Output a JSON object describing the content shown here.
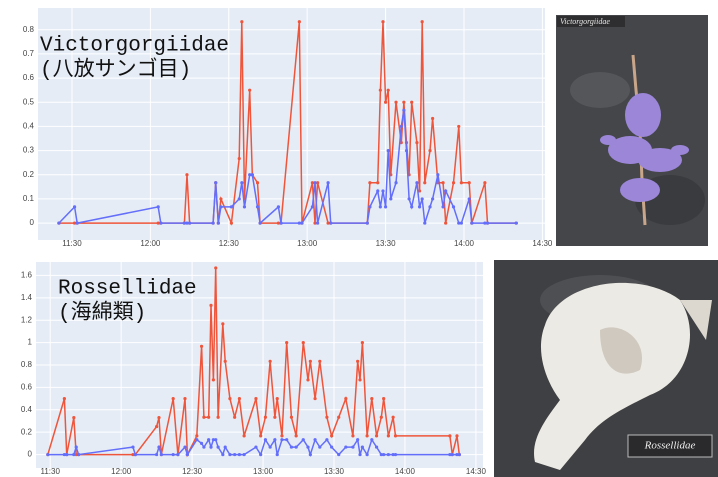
{
  "chart_data": [
    {
      "type": "line",
      "annotation": [
        "Victorgorgiidae",
        "(八放サンゴ目)"
      ],
      "photo_caption": "Victorgorgiidae",
      "x": [
        "11:25",
        "11:31",
        "11:32",
        "12:03",
        "12:04",
        "12:13",
        "12:14",
        "12:15",
        "12:24",
        "12:25",
        "12:26",
        "12:27",
        "12:31",
        "12:34",
        "12:35",
        "12:36",
        "12:38",
        "12:39",
        "12:41",
        "12:42",
        "12:49",
        "12:50",
        "12:57",
        "12:58",
        "13:02",
        "13:03",
        "13:04",
        "13:08",
        "13:09",
        "13:23",
        "13:24",
        "13:27",
        "13:28",
        "13:29",
        "13:30",
        "13:31",
        "13:32",
        "13:34",
        "13:36",
        "13:37",
        "13:38",
        "13:39",
        "13:40",
        "13:42",
        "13:43",
        "13:44",
        "13:45",
        "13:47",
        "13:48",
        "13:50",
        "13:52",
        "13:53",
        "13:56",
        "13:58",
        "13:59",
        "14:02",
        "14:03",
        "14:08",
        "14:09",
        "14:20"
      ],
      "series": [
        {
          "color": "#ef553b",
          "values": [
            0,
            0,
            0,
            0,
            0,
            0,
            0.2,
            0,
            0,
            0.167,
            0,
            0.1,
            0,
            0.267,
            0.833,
            0.1,
            0.55,
            0.2,
            0.167,
            0,
            0,
            0,
            0.833,
            0,
            0.167,
            0,
            0.167,
            0,
            0,
            0,
            0.167,
            0.167,
            0.55,
            0.833,
            0.5,
            0.55,
            0.2,
            0.5,
            0.333,
            0.5,
            0.333,
            0.2,
            0.5,
            0.333,
            0.133,
            0.833,
            0.167,
            0.3,
            0.433,
            0.167,
            0.167,
            0,
            0.167,
            0.4,
            0.167,
            0.167,
            0,
            0.167,
            0,
            0
          ]
        },
        {
          "color": "#636efa",
          "values": [
            0,
            0.067,
            0,
            0.067,
            0,
            0,
            0,
            0,
            0,
            0.167,
            0,
            0.067,
            0.067,
            0.1,
            0.167,
            0.067,
            0.2,
            0.2,
            0.067,
            0,
            0.067,
            0,
            0,
            0,
            0.067,
            0.167,
            0,
            0.167,
            0,
            0,
            0.067,
            0.133,
            0.067,
            0.133,
            0.067,
            0.3,
            0.1,
            0.167,
            0.4,
            0.467,
            0.3,
            0.1,
            0.067,
            0.167,
            0.067,
            0.1,
            0,
            0.067,
            0.1,
            0.2,
            0.067,
            0.133,
            0.067,
            0,
            0,
            0.1,
            0,
            0,
            0,
            0
          ]
        }
      ],
      "xlim": [
        "11:17",
        "14:31"
      ],
      "xticks": [
        "11:30",
        "12:00",
        "12:30",
        "13:00",
        "13:30",
        "14:00",
        "14:30"
      ],
      "ylim": [
        -0.07,
        0.89
      ],
      "yticks": [
        0,
        0.1,
        0.2,
        0.3,
        0.4,
        0.5,
        0.6,
        0.7,
        0.8
      ],
      "grid": true
    },
    {
      "type": "line",
      "annotation": [
        "Rossellidae",
        "(海綿類)"
      ],
      "photo_caption": "Rossellidae",
      "x": [
        "11:29",
        "11:36",
        "11:37",
        "11:40",
        "11:41",
        "11:42",
        "12:05",
        "12:06",
        "12:15",
        "12:16",
        "12:17",
        "12:22",
        "12:24",
        "12:27",
        "12:28",
        "12:32",
        "12:34",
        "12:35",
        "12:37",
        "12:38",
        "12:39",
        "12:40",
        "12:41",
        "12:43",
        "12:44",
        "12:46",
        "12:48",
        "12:50",
        "12:52",
        "12:57",
        "12:59",
        "13:01",
        "13:03",
        "13:05",
        "13:06",
        "13:08",
        "13:10",
        "13:12",
        "13:14",
        "13:17",
        "13:19",
        "13:20",
        "13:22",
        "13:24",
        "13:27",
        "13:29",
        "13:32",
        "13:35",
        "13:38",
        "13:40",
        "13:41",
        "13:42",
        "13:44",
        "13:46",
        "13:48",
        "13:50",
        "13:51",
        "13:53",
        "13:55",
        "13:56",
        "14:19",
        "14:20",
        "14:22",
        "14:23"
      ],
      "series": [
        {
          "color": "#ef553b",
          "values": [
            0,
            0.5,
            0,
            0.33,
            0,
            0,
            0,
            0,
            0.25,
            0.33,
            0,
            0.5,
            0,
            0.5,
            0,
            0.167,
            0.967,
            0.333,
            0.333,
            1.333,
            0.667,
            1.667,
            0.333,
            1.167,
            0.833,
            0.5,
            0.333,
            0.5,
            0.167,
            0.5,
            0.167,
            0.333,
            0.833,
            0.333,
            0.5,
            0.167,
            1,
            0.333,
            0.167,
            1,
            0.667,
            0.833,
            0.5,
            0.833,
            0.333,
            0.167,
            0.333,
            0.5,
            0.167,
            0.833,
            0.667,
            1,
            0.167,
            0.5,
            0.167,
            0.333,
            0.5,
            0.167,
            0.333,
            0.167,
            0.167,
            0,
            0.167,
            0
          ]
        },
        {
          "color": "#636efa",
          "values": [
            0,
            0,
            0,
            0,
            0.067,
            0,
            0.067,
            0,
            0,
            0.067,
            0,
            0,
            0,
            0.067,
            0,
            0.133,
            0.1,
            0.067,
            0.133,
            0.067,
            0.133,
            0.133,
            0.067,
            0,
            0.067,
            0,
            0,
            0,
            0,
            0.067,
            0,
            0.133,
            0.067,
            0.133,
            0,
            0.133,
            0.133,
            0.067,
            0.067,
            0.133,
            0.067,
            0,
            0.133,
            0.067,
            0.133,
            0.067,
            0,
            0.067,
            0.067,
            0.133,
            0,
            0.067,
            0,
            0.133,
            0.067,
            0,
            0,
            0,
            0,
            0,
            0,
            0,
            0,
            0
          ]
        }
      ],
      "xlim": [
        "11:24",
        "14:33"
      ],
      "xticks": [
        "11:30",
        "12:00",
        "12:30",
        "13:00",
        "13:30",
        "14:00",
        "14:30"
      ],
      "ylim": [
        -0.12,
        1.72
      ],
      "yticks": [
        0,
        0.2,
        0.4,
        0.6,
        0.8,
        1,
        1.2,
        1.4,
        1.6
      ],
      "grid": true
    }
  ]
}
